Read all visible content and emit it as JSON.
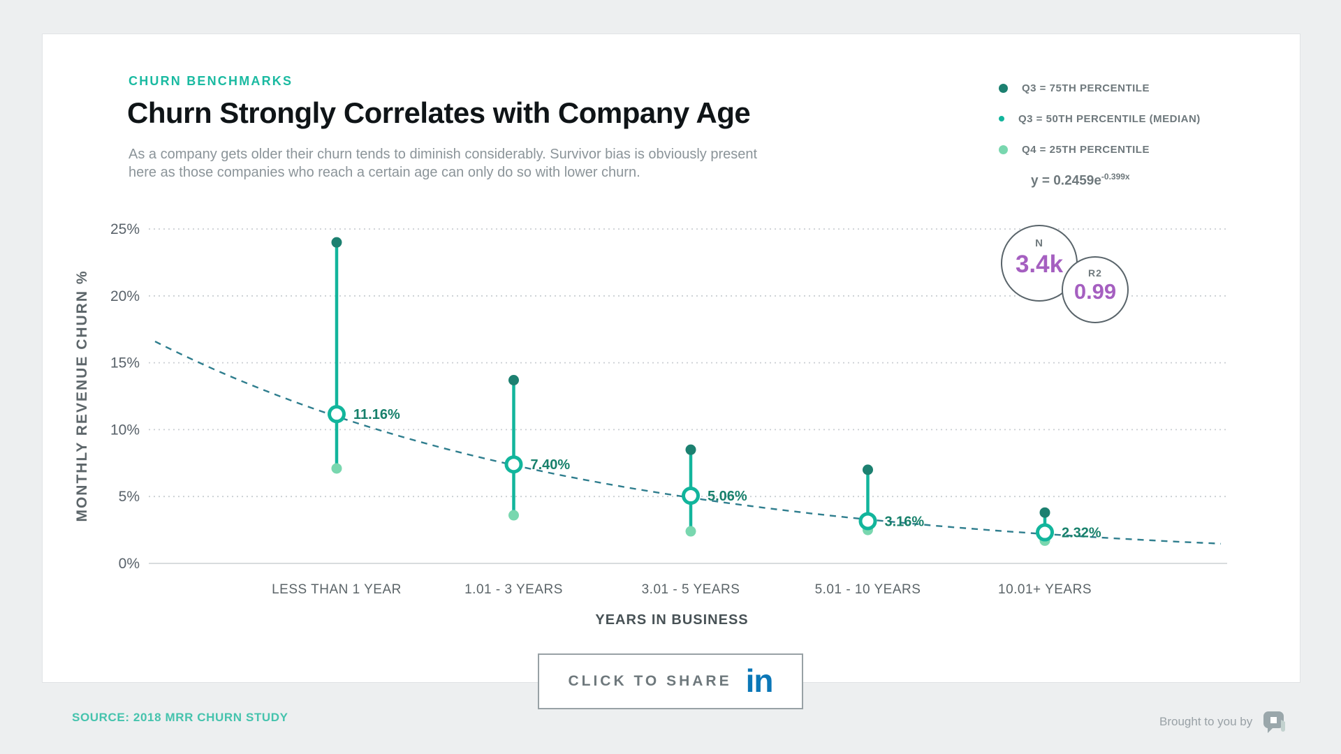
{
  "header": {
    "kicker": "CHURN BENCHMARKS",
    "title": "Churn Strongly Correlates with Company Age",
    "subtitle": "As a company gets older their churn tends to diminish considerably. Survivor bias is obviously present here as those companies who reach a certain age can only do so with lower churn."
  },
  "legend": {
    "items": [
      {
        "label": "Q3 = 75TH PERCENTILE",
        "marker": "solid-dot",
        "color": "#1c8070"
      },
      {
        "label": "Q3 = 50TH PERCENTILE (MEDIAN)",
        "marker": "ring",
        "color": "#12b59c"
      },
      {
        "label": "Q4 = 25TH PERCENTILE",
        "marker": "solid-dot",
        "color": "#79d7af"
      }
    ],
    "equation_base": "y = 0.2459e",
    "equation_exponent": "-0.399x"
  },
  "stats": {
    "n": {
      "label": "N",
      "value": "3.4k"
    },
    "r2": {
      "label": "R2",
      "value": "0.99"
    }
  },
  "chart_data": {
    "type": "scatter",
    "subtype": "dot-range-plot-with-exponential-trend",
    "title": "Churn Strongly Correlates with Company Age",
    "xlabel": "YEARS IN BUSINESS",
    "ylabel": "MONTHLY REVENUE CHURN %",
    "categories": [
      "LESS THAN 1 YEAR",
      "1.01 - 3 YEARS",
      "3.01 - 5 YEARS",
      "5.01 - 10 YEARS",
      "10.01+ YEARS"
    ],
    "series": [
      {
        "name": "Q3 = 75TH PERCENTILE",
        "values": [
          24.0,
          13.7,
          8.5,
          7.0,
          3.8
        ],
        "color": "#1c8070"
      },
      {
        "name": "Q3 = 50TH PERCENTILE (MEDIAN)",
        "values": [
          11.16,
          7.4,
          5.06,
          3.16,
          2.32
        ],
        "color": "#12b59c"
      },
      {
        "name": "Q4 = 25TH PERCENTILE",
        "values": [
          7.1,
          3.6,
          2.4,
          2.5,
          1.7
        ],
        "color": "#79d7af"
      }
    ],
    "median_labels": [
      "11.16%",
      "7.40%",
      "5.06%",
      "3.16%",
      "2.32%"
    ],
    "trendline": {
      "equation": "y = 0.2459e^-0.399x",
      "style": "dashed",
      "color": "#2f7e8e",
      "r2": 0.99,
      "n": "3.4k"
    },
    "ylim": [
      0,
      25
    ],
    "yticks": [
      "0%",
      "5%",
      "10%",
      "15%",
      "20%",
      "25%"
    ],
    "grid": "dotted horizontal"
  },
  "share": {
    "label": "CLICK TO SHARE",
    "network": "linkedin",
    "icon_text": "in"
  },
  "footer": {
    "source": "SOURCE: 2018 MRR CHURN STUDY",
    "attribution": "Brought to you by"
  },
  "colors": {
    "accent_teal": "#1abaa1",
    "median_teal": "#12b59c",
    "dark_teal": "#1c8070",
    "light_green": "#79d7af",
    "trend_teal_blue": "#2f7e8e",
    "stat_purple": "#a55fc0",
    "linkedin_blue": "#0b77b7",
    "source_teal": "#45c3ad"
  }
}
